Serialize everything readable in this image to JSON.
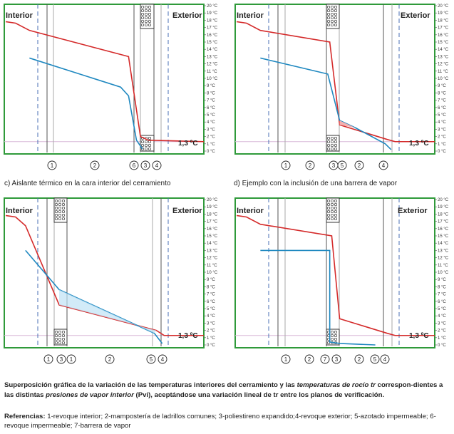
{
  "panel_labels": {
    "interior": "Interior",
    "exterior": "Exterior"
  },
  "temp_ticks": [
    "0 °C",
    "1 °C",
    "2 °C",
    "3 °C",
    "4 °C",
    "5 °C",
    "6 °C",
    "7 °C",
    "8 °C",
    "9 °C",
    "10 °C",
    "11 °C",
    "12 °C",
    "13 °C",
    "14 °C",
    "15 °C",
    "16 °C",
    "17 °C",
    "18 °C",
    "19 °C",
    "20 °C"
  ],
  "exterior_temp_label": "1,3 ºC",
  "colors": {
    "temperature_line": "#d42a2a",
    "dew_line": "#1f88c0",
    "frame": "#2f9a3a",
    "insulation": "#555555"
  },
  "chart_data": [
    {
      "type": "line",
      "ylim": [
        0,
        20
      ],
      "layer_markers": [
        "1",
        "2",
        "6",
        "3",
        "4"
      ],
      "series": [
        {
          "values": [
            [
              0,
              17.8
            ],
            [
              0.05,
              17.6
            ],
            [
              0.12,
              16.6
            ],
            [
              0.62,
              13.0
            ],
            [
              0.68,
              2.0
            ],
            [
              0.72,
              1.5
            ],
            [
              1.0,
              1.3
            ]
          ]
        },
        {
          "values": [
            [
              0.12,
              12.8
            ],
            [
              0.58,
              8.8
            ],
            [
              0.62,
              7.6
            ],
            [
              0.66,
              1.5
            ],
            [
              0.69,
              0.3
            ]
          ]
        }
      ]
    },
    {
      "type": "line",
      "ylim": [
        0,
        20
      ],
      "layer_markers": [
        "1",
        "2",
        "3",
        "5",
        "2",
        "4"
      ],
      "series": [
        {
          "values": [
            [
              0,
              17.8
            ],
            [
              0.05,
              17.6
            ],
            [
              0.12,
              16.6
            ],
            [
              0.47,
              15.0
            ],
            [
              0.52,
              3.6
            ],
            [
              0.76,
              1.6
            ],
            [
              0.8,
              1.3
            ],
            [
              1.0,
              1.3
            ]
          ]
        },
        {
          "values": [
            [
              0.12,
              12.8
            ],
            [
              0.46,
              10.6
            ],
            [
              0.52,
              4.2
            ],
            [
              0.6,
              3.2
            ],
            [
              0.75,
              1.0
            ],
            [
              0.78,
              0.2
            ]
          ]
        }
      ]
    },
    {
      "type": "line",
      "ylim": [
        0,
        20
      ],
      "layer_markers": [
        "1",
        "3",
        "1",
        "2",
        "5",
        "4"
      ],
      "series": [
        {
          "values": [
            [
              0,
              17.8
            ],
            [
              0.05,
              17.6
            ],
            [
              0.1,
              16.4
            ],
            [
              0.27,
              5.5
            ],
            [
              0.76,
              2.0
            ],
            [
              0.8,
              1.3
            ],
            [
              1.0,
              1.3
            ]
          ]
        },
        {
          "values": [
            [
              0.1,
              13.0
            ],
            [
              0.27,
              7.6
            ],
            [
              0.75,
              1.6
            ],
            [
              0.79,
              0.2
            ]
          ]
        }
      ]
    },
    {
      "type": "line",
      "ylim": [
        0,
        20
      ],
      "layer_markers": [
        "1",
        "2",
        "7",
        "3",
        "2",
        "5",
        "4"
      ],
      "series": [
        {
          "values": [
            [
              0,
              17.8
            ],
            [
              0.05,
              17.6
            ],
            [
              0.12,
              16.6
            ],
            [
              0.48,
              15.0
            ],
            [
              0.52,
              3.6
            ],
            [
              0.76,
              1.6
            ],
            [
              0.8,
              1.3
            ],
            [
              1.0,
              1.3
            ]
          ]
        },
        {
          "values": [
            [
              0.12,
              13.0
            ],
            [
              0.47,
              13.0
            ],
            [
              0.47,
              0.4
            ],
            [
              0.52,
              0.2
            ],
            [
              0.7,
              0.0
            ]
          ]
        }
      ]
    }
  ],
  "captions": {
    "c": "c) Aislante térmico en la cara interior del cerramiento",
    "d": "d) Ejemplo con la inclusión de una barrera de vapor"
  },
  "summary": {
    "p1": "Superposición gráfica de la variación de las temperaturas interiores del cerramiento y las ",
    "i1": "temperaturas de rocío tr",
    "p2": " correspon-dientes a las distintas ",
    "i2": "presiones de vapor interior",
    "p3": " (Pvi), aceptándose una variación lineal de tr entre los planos de verificación."
  },
  "refs": {
    "label": "Referencias:",
    "text": " 1-revoque interior; 2-mampostería de ladrillos comunes; 3-poliestireno expandido;4-revoque exterior; 5-azotado impermeable; 6-revoque impermeable; 7-barrera de vapor"
  }
}
